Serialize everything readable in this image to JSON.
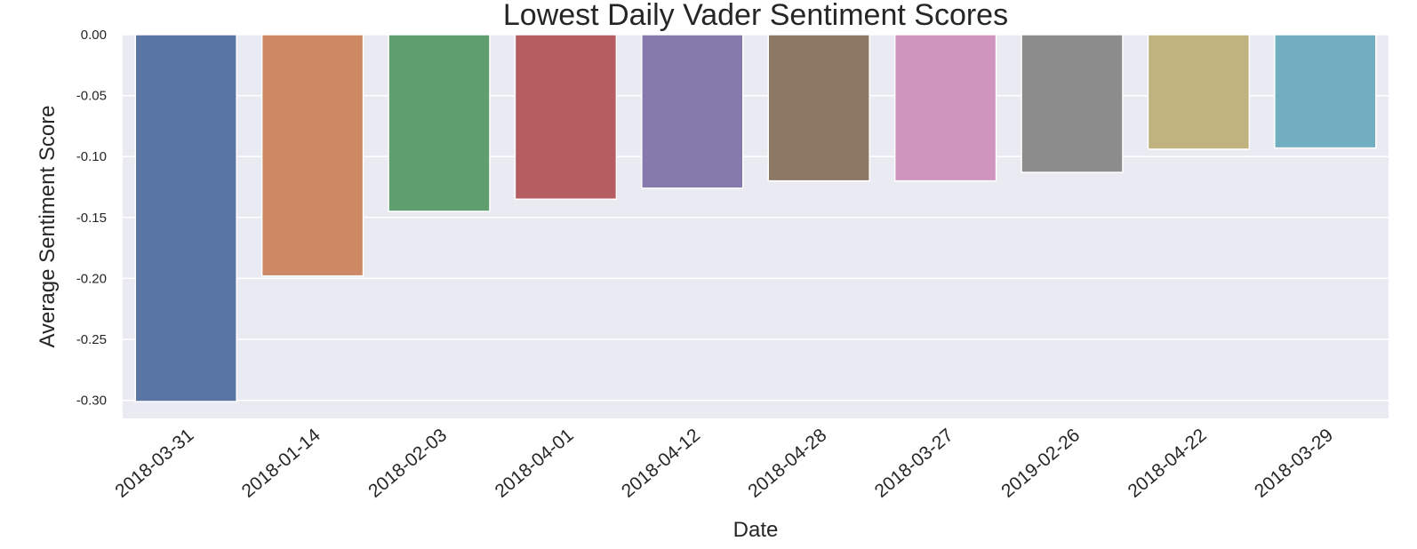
{
  "chart_data": {
    "type": "bar",
    "title": "Lowest Daily Vader Sentiment Scores",
    "xlabel": "Date",
    "ylabel": "Average Sentiment Score",
    "categories": [
      "2018-03-31",
      "2018-01-14",
      "2018-02-03",
      "2018-04-01",
      "2018-04-12",
      "2018-04-28",
      "2018-03-27",
      "2019-02-26",
      "2018-04-22",
      "2018-03-29"
    ],
    "values": [
      -0.301,
      -0.198,
      -0.145,
      -0.135,
      -0.126,
      -0.12,
      -0.12,
      -0.113,
      -0.094,
      -0.093
    ],
    "colors": [
      "#5975a4",
      "#cc8963",
      "#5f9e6e",
      "#b55d60",
      "#857aab",
      "#8d7866",
      "#d095bf",
      "#8c8c8c",
      "#c1b37f",
      "#71aec0"
    ],
    "ylim": [
      -0.316,
      0.0
    ],
    "yticks": [
      0.0,
      -0.05,
      -0.1,
      -0.15,
      -0.2,
      -0.25,
      -0.3
    ],
    "ytick_labels": [
      "0.00",
      "-0.05",
      "-0.10",
      "-0.15",
      "-0.20",
      "-0.25",
      "-0.30"
    ],
    "grid": true,
    "background": "#eaeaf2"
  }
}
